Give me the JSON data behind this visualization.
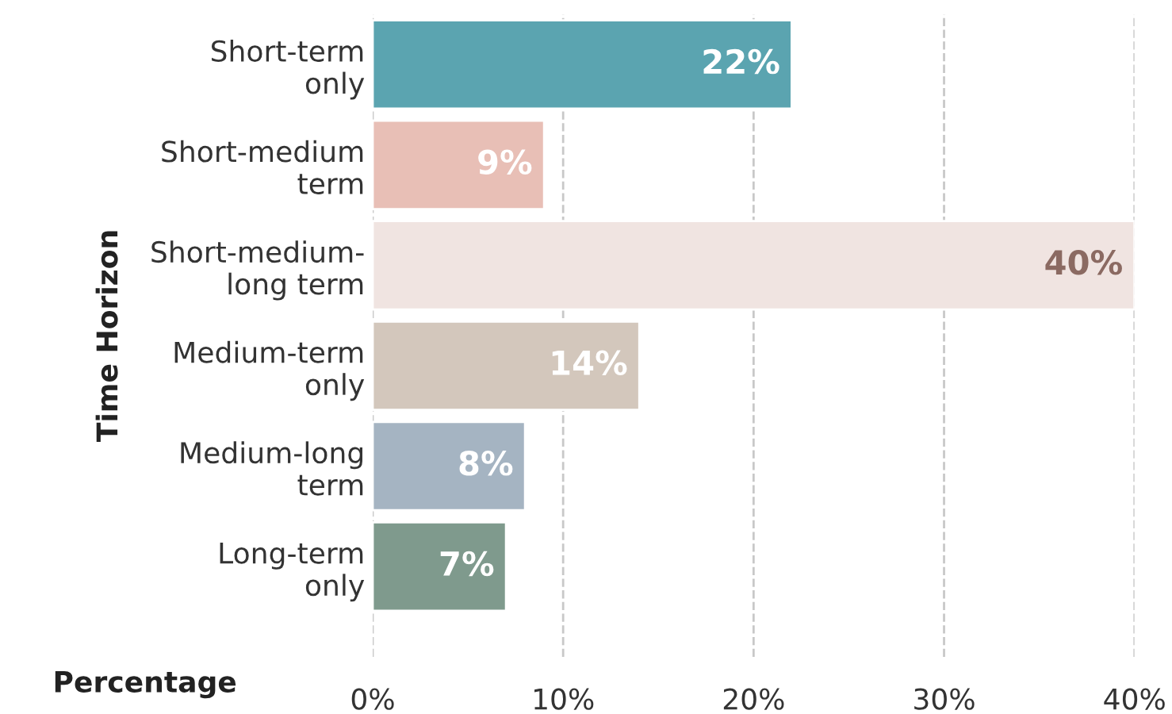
{
  "chart_data": {
    "type": "bar",
    "orientation": "horizontal",
    "xlabel": "Percentage",
    "ylabel": "Time Horizon",
    "categories": [
      "Short-term\nonly",
      "Short-medium\nterm",
      "Short-medium-\nlong term",
      "Medium-term\nonly",
      "Medium-long\nterm",
      "Long-term\nonly"
    ],
    "values": [
      22,
      9,
      40,
      14,
      8,
      7
    ],
    "colors": [
      "#5ba4b0",
      "#e8bfb6",
      "#f0e4e1",
      "#d3c7bc",
      "#a5b4c2",
      "#7f9a8d"
    ],
    "xlim": [
      0,
      40
    ],
    "xticks": [
      {
        "value": 0,
        "label": "0%"
      },
      {
        "value": 10,
        "label": "10%"
      },
      {
        "value": 20,
        "label": "20%"
      },
      {
        "value": 30,
        "label": "30%"
      },
      {
        "value": 40,
        "label": "40%"
      }
    ],
    "value_labels": [
      "22%",
      "9%",
      "40%",
      "14%",
      "8%",
      "7%"
    ],
    "grid": "x"
  }
}
